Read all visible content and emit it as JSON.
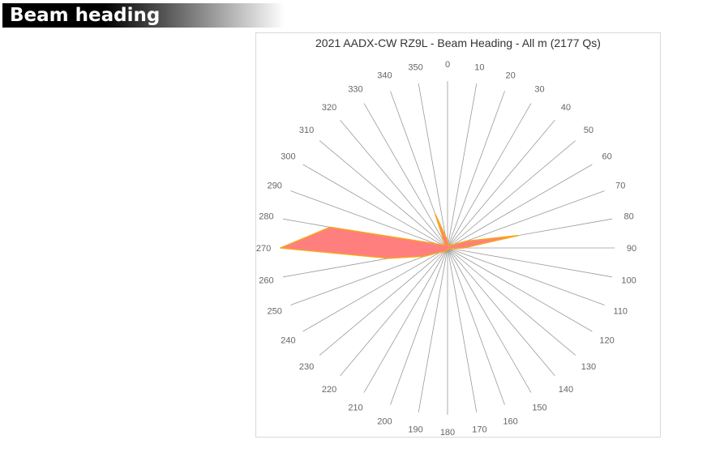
{
  "section": {
    "title": "Beam heading"
  },
  "chart_data": {
    "type": "radar",
    "title": "2021 AADX-CW RZ9L - Beam Heading - All m (2177 Qs)",
    "categories": [
      "0",
      "10",
      "20",
      "30",
      "40",
      "50",
      "60",
      "70",
      "80",
      "90",
      "100",
      "110",
      "120",
      "130",
      "140",
      "150",
      "160",
      "170",
      "180",
      "190",
      "200",
      "210",
      "220",
      "230",
      "240",
      "250",
      "260",
      "270",
      "280",
      "290",
      "300",
      "310",
      "320",
      "330",
      "340",
      "350"
    ],
    "series": [
      {
        "values": [
          10,
          4,
          3,
          2,
          4,
          6,
          8,
          25,
          90,
          20,
          4,
          3,
          2,
          2,
          2,
          2,
          2,
          2,
          2,
          2,
          3,
          5,
          6,
          8,
          10,
          30,
          75,
          210,
          150,
          15,
          8,
          6,
          5,
          8,
          45,
          15
        ]
      }
    ],
    "rlim": [
      0,
      210
    ],
    "colors": {
      "fill": "#ff7f7f",
      "stroke": "#f7a520",
      "spokes": "#9a9a9a",
      "labels": "#666666"
    },
    "grid": true,
    "legend": false
  }
}
